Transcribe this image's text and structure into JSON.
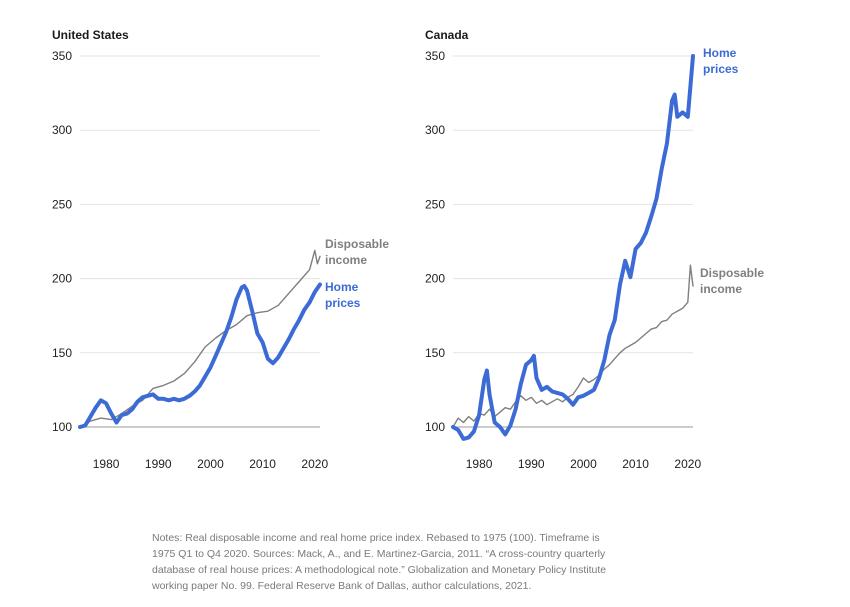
{
  "chart_data": [
    {
      "type": "line",
      "title": "United States",
      "ylim": [
        100,
        350
      ],
      "yticks": [
        100,
        150,
        200,
        250,
        300,
        350
      ],
      "xlim": [
        1975,
        2021
      ],
      "xticks": [
        1980,
        1990,
        2000,
        2010,
        2020
      ],
      "grid": true,
      "series": [
        {
          "name": "Disposable income",
          "color": "#7f7f7f",
          "x": [
            1975,
            1977,
            1979,
            1981,
            1983,
            1985,
            1987,
            1989,
            1991,
            1993,
            1995,
            1997,
            1999,
            2001,
            2003,
            2005,
            2007,
            2008,
            2009,
            2011,
            2013,
            2015,
            2017,
            2019,
            2020,
            2020.5,
            2021
          ],
          "values": [
            100,
            104,
            106,
            105,
            109,
            114,
            118,
            126,
            128,
            131,
            136,
            144,
            154,
            160,
            165,
            169,
            175,
            176,
            177,
            178,
            182,
            190,
            198,
            206,
            219,
            210,
            215
          ]
        },
        {
          "name": "Home prices",
          "color": "#3c6bd6",
          "x": [
            1975,
            1976,
            1977,
            1978,
            1979,
            1980,
            1981,
            1982,
            1983,
            1984,
            1985,
            1986,
            1987,
            1988,
            1989,
            1990,
            1991,
            1992,
            1993,
            1994,
            1995,
            1996,
            1997,
            1998,
            1999,
            2000,
            2001,
            2002,
            2003,
            2004,
            2005,
            2006,
            2006.5,
            2007,
            2008,
            2009,
            2010,
            2011,
            2012,
            2013,
            2014,
            2015,
            2016,
            2017,
            2018,
            2019,
            2020,
            2021
          ],
          "values": [
            100,
            101,
            107,
            113,
            118,
            116,
            109,
            103,
            108,
            109,
            112,
            117,
            120,
            121,
            122,
            119,
            119,
            118,
            119,
            118,
            119,
            121,
            124,
            128,
            134,
            140,
            148,
            156,
            164,
            174,
            186,
            194,
            195,
            192,
            178,
            163,
            157,
            146,
            143,
            147,
            153,
            159,
            166,
            172,
            179,
            184,
            191,
            196
          ]
        }
      ]
    },
    {
      "type": "line",
      "title": "Canada",
      "ylim": [
        100,
        350
      ],
      "yticks": [
        100,
        150,
        200,
        250,
        300,
        350
      ],
      "xlim": [
        1975,
        2021
      ],
      "xticks": [
        1980,
        1990,
        2000,
        2010,
        2020
      ],
      "grid": true,
      "series": [
        {
          "name": "Disposable income",
          "color": "#7f7f7f",
          "x": [
            1975,
            1976,
            1977,
            1978,
            1979,
            1980,
            1981,
            1982,
            1983,
            1984,
            1985,
            1986,
            1987,
            1988,
            1989,
            1990,
            1991,
            1992,
            1993,
            1994,
            1995,
            1996,
            1997,
            1998,
            1999,
            2000,
            2001,
            2002,
            2003,
            2004,
            2005,
            2006,
            2007,
            2008,
            2009,
            2010,
            2011,
            2012,
            2013,
            2014,
            2015,
            2016,
            2017,
            2018,
            2019,
            2020,
            2020.5,
            2021
          ],
          "values": [
            100,
            106,
            103,
            107,
            104,
            109,
            108,
            112,
            107,
            110,
            113,
            112,
            117,
            121,
            118,
            120,
            116,
            118,
            115,
            117,
            119,
            117,
            120,
            122,
            127,
            133,
            130,
            132,
            135,
            139,
            142,
            146,
            150,
            153,
            155,
            157,
            160,
            163,
            166,
            167,
            171,
            172,
            176,
            178,
            180,
            184,
            209,
            195
          ]
        },
        {
          "name": "Home prices",
          "color": "#3c6bd6",
          "x": [
            1975,
            1976,
            1977,
            1978,
            1979,
            1980,
            1981,
            1981.5,
            1982,
            1983,
            1984,
            1985,
            1986,
            1987,
            1988,
            1989,
            1990,
            1990.5,
            1991,
            1992,
            1993,
            1994,
            1995,
            1996,
            1997,
            1998,
            1999,
            2000,
            2001,
            2002,
            2003,
            2004,
            2005,
            2006,
            2007,
            2008,
            2009,
            2010,
            2011,
            2012,
            2013,
            2014,
            2015,
            2016,
            2017,
            2017.5,
            2018,
            2019,
            2020,
            2021
          ],
          "values": [
            100,
            98,
            92,
            93,
            97,
            108,
            132,
            138,
            122,
            103,
            100,
            95,
            101,
            112,
            129,
            142,
            145,
            148,
            133,
            125,
            127,
            124,
            123,
            122,
            119,
            115,
            120,
            121,
            123,
            125,
            133,
            145,
            162,
            172,
            196,
            212,
            201,
            220,
            224,
            231,
            242,
            254,
            274,
            291,
            320,
            324,
            309,
            312,
            309,
            350
          ]
        }
      ]
    }
  ],
  "notes": [
    "Notes: Real disposable income and real home price index. Rebased to 1975 (100). Timeframe is",
    "1975 Q1 to Q4 2020. Sources: Mack, A., and E. Martinez-Garcia, 2011. “A cross-country quarterly",
    "database of real house prices: A methodological note.” Globalization and Monetary Policy Institute",
    "working paper No. 99. Federal Reserve Bank of Dallas, author calculations, 2021."
  ],
  "labels": {
    "us_income": [
      "Disposable",
      "income"
    ],
    "us_home": [
      "Home",
      "prices"
    ],
    "ca_home": [
      "Home",
      "prices"
    ],
    "ca_income": [
      "Disposable",
      "income"
    ]
  }
}
